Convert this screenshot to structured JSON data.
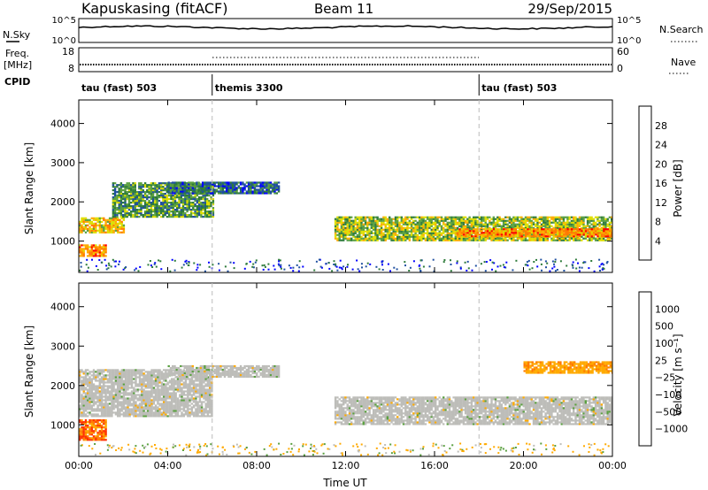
{
  "header": {
    "station": "Kapuskasing (fitACF)",
    "beam": "Beam 11",
    "date": "29/Sep/2015"
  },
  "params": {
    "nsky_label": "N.Sky",
    "nsearch_label": "N.Search",
    "freq_label": "Freq.",
    "freq_unit": "[MHz]",
    "nave_label": "Nave",
    "cpid_label": "CPID",
    "nsky_ticks": [
      "10^5",
      "10^0"
    ],
    "nsearch_ticks": [
      "10^5",
      "10^0"
    ],
    "freq_ticks": [
      "18",
      "8"
    ],
    "nave_ticks": [
      "60",
      "0"
    ]
  },
  "cpid_segments": [
    {
      "label": "tau (fast) 503",
      "start": 0,
      "end": 6
    },
    {
      "label": "themis 3300",
      "start": 6,
      "end": 18
    },
    {
      "label": "tau (fast) 503",
      "start": 18,
      "end": 24
    }
  ],
  "chart_data": [
    {
      "type": "heatmap",
      "title": "",
      "xlabel": "Time UT",
      "ylabel": "Slant Range [km]",
      "xlim": [
        0,
        24
      ],
      "ylim": [
        200,
        4600
      ],
      "yticks": [
        1000,
        2000,
        3000,
        4000
      ],
      "colorbar": {
        "label": "Power [dB]",
        "range": [
          0,
          32
        ],
        "ticks": [
          "4",
          "8",
          "12",
          "16",
          "20",
          "24",
          "28"
        ],
        "colors": [
          "#0000ff",
          "#1f4fa0",
          "#2e7b3b",
          "#5aa040",
          "#dede00",
          "#ffaa00",
          "#ff7a00",
          "#ff0000"
        ]
      },
      "regions": [
        {
          "t": [
            0,
            1.2
          ],
          "r": [
            600,
            900
          ],
          "value": 28
        },
        {
          "t": [
            0,
            2
          ],
          "r": [
            1200,
            1600
          ],
          "value": 24
        },
        {
          "t": [
            1.5,
            6
          ],
          "r": [
            1600,
            2500
          ],
          "value": 14
        },
        {
          "t": [
            4,
            9
          ],
          "r": [
            2200,
            2500
          ],
          "value": 12
        },
        {
          "t": [
            11.5,
            24
          ],
          "r": [
            1000,
            1600
          ],
          "value": 20
        },
        {
          "t": [
            17,
            24
          ],
          "r": [
            1100,
            1300
          ],
          "value": 26
        }
      ]
    },
    {
      "type": "heatmap",
      "title": "",
      "xlabel": "Time UT",
      "ylabel": "Slant Range [km]",
      "xlim": [
        0,
        24
      ],
      "ylim": [
        200,
        4600
      ],
      "xticks": [
        "00:00",
        "04:00",
        "08:00",
        "12:00",
        "16:00",
        "20:00",
        "00:00"
      ],
      "yticks": [
        1000,
        2000,
        3000,
        4000
      ],
      "colorbar": {
        "label": "Velocity [m s⁻¹]",
        "ticks": [
          "1000",
          "500",
          "100",
          "25",
          "−25",
          "−100",
          "−500",
          "−1000"
        ],
        "colors": [
          "#1030b0",
          "#1f4fa0",
          "#2e7b3b",
          "#5aa040",
          "#bdbdb9",
          "#ffaa00",
          "#ff7a00",
          "#ff3000",
          "#ff0000"
        ]
      },
      "regions": [
        {
          "t": [
            0,
            1.2
          ],
          "r": [
            600,
            1100
          ],
          "value": -500
        },
        {
          "t": [
            0,
            6
          ],
          "r": [
            1200,
            2400
          ],
          "value": 0
        },
        {
          "t": [
            4,
            9
          ],
          "r": [
            2200,
            2500
          ],
          "value": 0
        },
        {
          "t": [
            11.5,
            24
          ],
          "r": [
            1000,
            1700
          ],
          "value": 0
        },
        {
          "t": [
            20,
            24
          ],
          "r": [
            2300,
            2600
          ],
          "value": -100
        }
      ]
    }
  ]
}
